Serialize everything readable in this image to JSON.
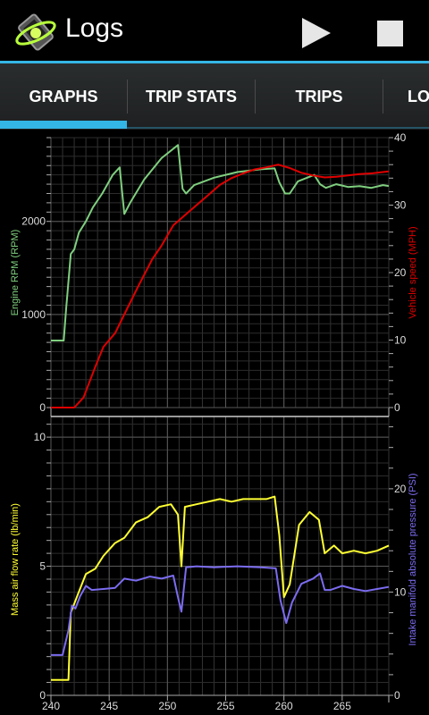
{
  "app": {
    "title": "Logs",
    "icon": "dashboard-logo-icon"
  },
  "actions": {
    "play_icon": "play-icon",
    "stop_icon": "stop-icon"
  },
  "tabs": [
    {
      "label": "GRAPHS",
      "selected": true
    },
    {
      "label": "TRIP STATS",
      "selected": false
    },
    {
      "label": "TRIPS",
      "selected": false
    },
    {
      "label": "LO",
      "selected": false
    }
  ],
  "colors": {
    "accent": "#33b5e5",
    "rpm": "#7fcf7f",
    "speed": "#e00000",
    "maf": "#ffff33",
    "map": "#7b6cf0"
  },
  "chart_data": [
    {
      "type": "line",
      "xlim": [
        240,
        269
      ],
      "xticks": [
        240,
        245,
        250,
        255,
        260,
        265
      ],
      "grid": true,
      "left_axis": {
        "label": "Engine RPM (RPM)",
        "lim": [
          0,
          2900
        ],
        "ticks": [
          0,
          1000,
          2000
        ],
        "color": "#7fcf7f"
      },
      "right_axis": {
        "label": "Vehicle speed (MPH)",
        "lim": [
          0,
          40
        ],
        "ticks": [
          0,
          10,
          20,
          30,
          40
        ],
        "color": "#e00000"
      },
      "series": [
        {
          "name": "Engine RPM",
          "axis": "left",
          "color": "#7fcf7f",
          "x": [
            240,
            241.1,
            241.3,
            241.7,
            242,
            242.4,
            243,
            243.6,
            244.4,
            245.3,
            245.9,
            246.3,
            246.8,
            248,
            249.5,
            250.9,
            251.3,
            251.6,
            252.3,
            254,
            256,
            258,
            259.2,
            259.6,
            260.1,
            260.5,
            261.2,
            262.6,
            263.1,
            263.6,
            264.5,
            265.5,
            266.5,
            267.5,
            268.5,
            269
          ],
          "y": [
            720,
            720,
            1050,
            1650,
            1700,
            1880,
            2000,
            2150,
            2300,
            2500,
            2580,
            2080,
            2200,
            2450,
            2680,
            2820,
            2350,
            2300,
            2390,
            2470,
            2530,
            2560,
            2570,
            2420,
            2300,
            2300,
            2430,
            2500,
            2400,
            2360,
            2400,
            2370,
            2380,
            2360,
            2390,
            2380
          ]
        },
        {
          "name": "Vehicle speed",
          "axis": "right",
          "color": "#e00000",
          "x": [
            240,
            242,
            242.8,
            243.8,
            244.5,
            245.5,
            246.5,
            247.5,
            248.7,
            249.5,
            250.5,
            251.5,
            252.5,
            253.5,
            254.5,
            255.5,
            256.5,
            257.5,
            258.5,
            259.5,
            260.5,
            261.5,
            262.5,
            263.5,
            264.5,
            265.5,
            266.5,
            267.5,
            268.5,
            269
          ],
          "y": [
            0,
            0,
            1.5,
            6,
            9,
            11,
            14.5,
            18,
            22,
            24,
            27,
            28.5,
            30,
            31.5,
            33,
            34,
            34.7,
            35.3,
            35.6,
            36,
            35.5,
            34.8,
            34.4,
            34.1,
            34.2,
            34.4,
            34.6,
            34.7,
            34.9,
            35
          ]
        }
      ]
    },
    {
      "type": "line",
      "xlim": [
        240,
        269
      ],
      "xticks": [
        240,
        245,
        250,
        255,
        260,
        265
      ],
      "grid": true,
      "left_axis": {
        "label": "Mass air flow rate (lb/min)",
        "lim": [
          0,
          10.8
        ],
        "ticks": [
          0,
          5,
          10
        ],
        "color": "#ffff33"
      },
      "right_axis": {
        "label": "Intake manifold absolute pressure (PSI)",
        "lim": [
          0,
          27
        ],
        "ticks": [
          0,
          10,
          20
        ],
        "color": "#7b6cf0"
      },
      "series": [
        {
          "name": "Mass air flow rate",
          "axis": "left",
          "color": "#ffff33",
          "x": [
            240,
            241.5,
            241.7,
            242.3,
            243,
            243.8,
            244.5,
            245.5,
            246.3,
            247.3,
            248.3,
            249.3,
            250.3,
            250.9,
            251.2,
            251.5,
            252.5,
            253.5,
            254.5,
            255.5,
            256.5,
            257.5,
            258.5,
            259.2,
            259.6,
            260,
            260.5,
            261.3,
            262.2,
            263,
            263.5,
            264.3,
            265,
            266,
            267,
            268,
            269
          ],
          "y": [
            0.6,
            0.6,
            3.2,
            3.9,
            4.7,
            4.9,
            5.4,
            5.9,
            6.1,
            6.7,
            6.9,
            7.3,
            7.4,
            7.0,
            5.0,
            7.3,
            7.4,
            7.5,
            7.6,
            7.5,
            7.6,
            7.6,
            7.6,
            7.7,
            6.2,
            3.8,
            4.3,
            6.6,
            7.1,
            6.8,
            5.5,
            5.8,
            5.5,
            5.6,
            5.5,
            5.6,
            5.8
          ]
        },
        {
          "name": "Intake manifold absolute pressure",
          "axis": "right",
          "color": "#7b6cf0",
          "x": [
            240,
            241,
            241.5,
            241.8,
            242.1,
            242.5,
            243,
            243.5,
            244.5,
            245.5,
            246.3,
            247.3,
            248.5,
            249.5,
            250.5,
            250.9,
            251.2,
            251.6,
            252.5,
            254,
            256,
            258,
            259.3,
            259.7,
            260.2,
            260.7,
            261.5,
            262.5,
            263.1,
            263.5,
            264,
            265,
            266,
            267,
            268,
            269
          ],
          "y": [
            3.9,
            3.9,
            6.3,
            8.7,
            8.4,
            9.6,
            10.6,
            10.2,
            10.3,
            10.4,
            11.3,
            11.1,
            11.5,
            11.3,
            11.6,
            9.5,
            8.1,
            12.4,
            12.5,
            12.4,
            12.5,
            12.4,
            12.3,
            9.2,
            7.0,
            9.0,
            10.8,
            11.3,
            11.8,
            10.2,
            10.2,
            10.6,
            10.3,
            10.1,
            10.3,
            10.5
          ]
        }
      ]
    }
  ]
}
